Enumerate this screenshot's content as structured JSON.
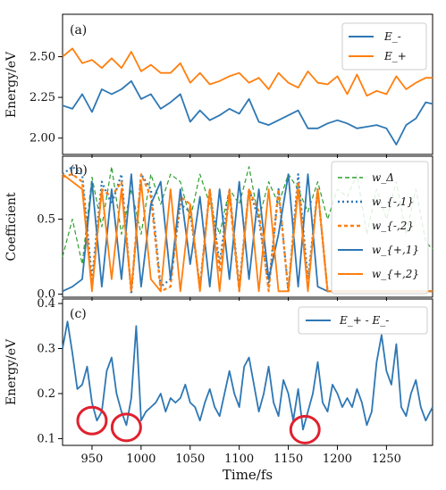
{
  "figure": {
    "xlabel": "Time/fs"
  },
  "colors": {
    "blue": "#2e77b4",
    "orange": "#ff7f0e",
    "green": "#2ca02c",
    "circle": "#e0212f"
  },
  "chart_data": [
    {
      "type": "line",
      "panel_label": "(a)",
      "xlabel": "",
      "ylabel": "Energy/eV",
      "xlim": [
        920,
        1297
      ],
      "ylim": [
        1.9,
        2.76
      ],
      "yticks": [
        "2.00",
        "2.25",
        "2.50"
      ],
      "ytick_values": [
        2.0,
        2.25,
        2.5
      ],
      "legend_position": "upper right",
      "x": [
        920,
        930,
        940,
        950,
        960,
        970,
        980,
        990,
        1000,
        1010,
        1020,
        1030,
        1040,
        1050,
        1060,
        1070,
        1080,
        1090,
        1100,
        1110,
        1120,
        1130,
        1140,
        1150,
        1160,
        1170,
        1180,
        1190,
        1200,
        1210,
        1220,
        1230,
        1240,
        1250,
        1260,
        1270,
        1280,
        1290,
        1297
      ],
      "series": [
        {
          "name": "E_-",
          "color_key": "blue",
          "values": [
            2.2,
            2.18,
            2.27,
            2.16,
            2.3,
            2.27,
            2.3,
            2.35,
            2.24,
            2.27,
            2.18,
            2.22,
            2.27,
            2.1,
            2.17,
            2.11,
            2.14,
            2.18,
            2.15,
            2.24,
            2.1,
            2.08,
            2.11,
            2.14,
            2.17,
            2.06,
            2.06,
            2.09,
            2.11,
            2.09,
            2.06,
            2.07,
            2.08,
            2.06,
            1.96,
            2.08,
            2.12,
            2.22,
            2.21
          ]
        },
        {
          "name": "E_+",
          "color_key": "orange",
          "values": [
            2.5,
            2.55,
            2.46,
            2.48,
            2.43,
            2.49,
            2.43,
            2.53,
            2.41,
            2.45,
            2.4,
            2.4,
            2.46,
            2.34,
            2.4,
            2.33,
            2.35,
            2.38,
            2.4,
            2.34,
            2.37,
            2.3,
            2.4,
            2.34,
            2.31,
            2.41,
            2.34,
            2.33,
            2.38,
            2.27,
            2.39,
            2.26,
            2.29,
            2.27,
            2.38,
            2.3,
            2.34,
            2.37,
            2.37
          ]
        }
      ]
    },
    {
      "type": "line",
      "panel_label": "(b)",
      "xlabel": "",
      "ylabel": "Coefficient",
      "xlim": [
        920,
        1297
      ],
      "ylim": [
        -0.02,
        0.92
      ],
      "yticks": [
        "0.0",
        "0.5"
      ],
      "ytick_values": [
        0.0,
        0.5
      ],
      "legend_position": "upper right",
      "x": [
        920,
        930,
        940,
        950,
        960,
        970,
        980,
        990,
        1000,
        1010,
        1020,
        1030,
        1040,
        1050,
        1060,
        1070,
        1080,
        1090,
        1100,
        1110,
        1120,
        1130,
        1140,
        1150,
        1160,
        1170,
        1180,
        1190,
        1200,
        1210,
        1220,
        1230,
        1240,
        1250,
        1260,
        1270,
        1280,
        1290,
        1297
      ],
      "series": [
        {
          "name": "w_Δ",
          "color_key": "green",
          "dash": "5,3",
          "values": [
            0.25,
            0.5,
            0.2,
            0.78,
            0.45,
            0.85,
            0.4,
            0.7,
            0.4,
            0.8,
            0.6,
            0.8,
            0.75,
            0.5,
            0.8,
            0.6,
            0.4,
            0.7,
            0.6,
            0.85,
            0.5,
            0.75,
            0.6,
            0.8,
            0.7,
            0.55,
            0.75,
            0.5,
            0.7,
            0.65,
            0.8,
            0.4,
            0.7,
            0.5,
            0.75,
            0.4,
            0.7,
            0.35,
            0.3
          ]
        },
        {
          "name": "w_{-,1}",
          "color_key": "blue",
          "dash": "2,3",
          "values": [
            0.8,
            0.85,
            0.8,
            0.1,
            0.75,
            0.6,
            0.8,
            0.0,
            0.8,
            0.7,
            0.05,
            0.1,
            0.6,
            0.55,
            0.05,
            0.7,
            0.2,
            0.7,
            0.05,
            0.7,
            0.5,
            0.05,
            0.7,
            0.02,
            0.8,
            0.1,
            0.7,
            0.02,
            0.02,
            0.02,
            0.02,
            0.02,
            0.02,
            0.02,
            0.02,
            0.02,
            0.02,
            0.02,
            0.02
          ]
        },
        {
          "name": "w_{-,2}",
          "color_key": "orange",
          "dash": "4,3",
          "values": [
            0.78,
            0.8,
            0.75,
            0.05,
            0.7,
            0.65,
            0.75,
            0.02,
            0.8,
            0.65,
            0.02,
            0.05,
            0.65,
            0.6,
            0.03,
            0.7,
            0.15,
            0.65,
            0.02,
            0.7,
            0.55,
            0.02,
            0.7,
            0.02,
            0.75,
            0.05,
            0.7,
            0.02,
            0.02,
            0.02,
            0.02,
            0.02,
            0.02,
            0.02,
            0.02,
            0.02,
            0.02,
            0.02,
            0.02
          ]
        },
        {
          "name": "w_{+,1}",
          "color_key": "blue",
          "values": [
            0.02,
            0.05,
            0.1,
            0.75,
            0.05,
            0.7,
            0.1,
            0.8,
            0.05,
            0.6,
            0.75,
            0.1,
            0.7,
            0.2,
            0.65,
            0.05,
            0.7,
            0.1,
            0.75,
            0.1,
            0.7,
            0.1,
            0.4,
            0.8,
            0.05,
            0.8,
            0.05,
            0.02,
            0.02,
            0.02,
            0.02,
            0.02,
            0.02,
            0.02,
            0.02,
            0.02,
            0.02,
            0.02,
            0.02
          ]
        },
        {
          "name": "w_{+,2}",
          "color_key": "orange",
          "values": [
            0.8,
            0.75,
            0.7,
            0.02,
            0.7,
            0.1,
            0.7,
            0.02,
            0.75,
            0.1,
            0.02,
            0.7,
            0.02,
            0.6,
            0.02,
            0.7,
            0.02,
            0.7,
            0.02,
            0.7,
            0.02,
            0.7,
            0.02,
            0.02,
            0.7,
            0.02,
            0.7,
            0.02,
            0.02,
            0.02,
            0.02,
            0.02,
            0.02,
            0.02,
            0.02,
            0.02,
            0.02,
            0.02,
            0.02
          ]
        }
      ]
    },
    {
      "type": "line",
      "panel_label": "(c)",
      "xlabel": "Time/fs",
      "ylabel": "Energy/eV",
      "xlim": [
        920,
        1297
      ],
      "ylim": [
        0.085,
        0.41
      ],
      "yticks": [
        "0.1",
        "0.2",
        "0.3",
        "0.4"
      ],
      "ytick_values": [
        0.1,
        0.2,
        0.3,
        0.4
      ],
      "xticks": [
        "950",
        "1000",
        "1050",
        "1100",
        "1150",
        "1200",
        "1250"
      ],
      "xtick_values": [
        950,
        1000,
        1050,
        1100,
        1150,
        1200,
        1250
      ],
      "legend_position": "upper right",
      "x": [
        920,
        925,
        930,
        935,
        940,
        945,
        950,
        955,
        960,
        965,
        970,
        975,
        980,
        985,
        990,
        995,
        1000,
        1005,
        1010,
        1015,
        1020,
        1025,
        1030,
        1035,
        1040,
        1045,
        1050,
        1055,
        1060,
        1065,
        1070,
        1075,
        1080,
        1085,
        1090,
        1095,
        1100,
        1105,
        1110,
        1115,
        1120,
        1125,
        1130,
        1135,
        1140,
        1145,
        1150,
        1155,
        1160,
        1165,
        1170,
        1175,
        1180,
        1185,
        1190,
        1195,
        1200,
        1205,
        1210,
        1215,
        1220,
        1225,
        1230,
        1235,
        1240,
        1245,
        1250,
        1255,
        1260,
        1265,
        1270,
        1275,
        1280,
        1285,
        1290,
        1297
      ],
      "series": [
        {
          "name": "E_+ - E_-",
          "color_key": "blue",
          "values": [
            0.3,
            0.36,
            0.29,
            0.21,
            0.22,
            0.26,
            0.18,
            0.14,
            0.16,
            0.25,
            0.28,
            0.2,
            0.16,
            0.13,
            0.19,
            0.35,
            0.14,
            0.16,
            0.17,
            0.18,
            0.2,
            0.16,
            0.19,
            0.18,
            0.19,
            0.22,
            0.18,
            0.17,
            0.14,
            0.18,
            0.21,
            0.17,
            0.15,
            0.2,
            0.25,
            0.2,
            0.17,
            0.26,
            0.28,
            0.22,
            0.16,
            0.2,
            0.26,
            0.18,
            0.15,
            0.23,
            0.2,
            0.14,
            0.21,
            0.12,
            0.16,
            0.2,
            0.27,
            0.18,
            0.16,
            0.22,
            0.2,
            0.17,
            0.19,
            0.17,
            0.21,
            0.18,
            0.13,
            0.16,
            0.27,
            0.33,
            0.25,
            0.22,
            0.31,
            0.17,
            0.15,
            0.2,
            0.23,
            0.17,
            0.14,
            0.17
          ]
        }
      ],
      "annotations": [
        {
          "shape": "circle",
          "x": 950,
          "y": 0.14
        },
        {
          "shape": "circle",
          "x": 985,
          "y": 0.125
        },
        {
          "shape": "circle",
          "x": 1167,
          "y": 0.12
        }
      ]
    }
  ]
}
